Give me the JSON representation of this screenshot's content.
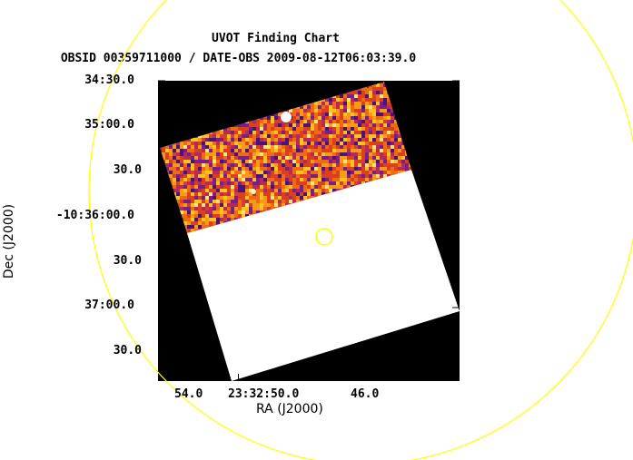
{
  "chart": {
    "title": "UVOT Finding Chart",
    "subtitle": "OBSID 00359711000 / DATE-OBS 2009-08-12T06:03:39.0",
    "xlabel": "RA (J2000)",
    "ylabel": "Dec (J2000)"
  },
  "axes": {
    "yticks": [
      "34:30.0",
      "35:00.0",
      "30.0",
      "-10:36:00.0",
      "30.0",
      "37:00.0",
      "30.0"
    ],
    "xticks": [
      "54.0",
      "23:32:50.0",
      "46.0"
    ]
  },
  "colors": {
    "background_sky": "#000000",
    "masked_region": "#ffffff",
    "overlay_circles": "#ffff00",
    "heatmap_low": "#5a1a8c",
    "heatmap_mid": "#e3401a",
    "heatmap_high": "#ffd21a"
  }
}
